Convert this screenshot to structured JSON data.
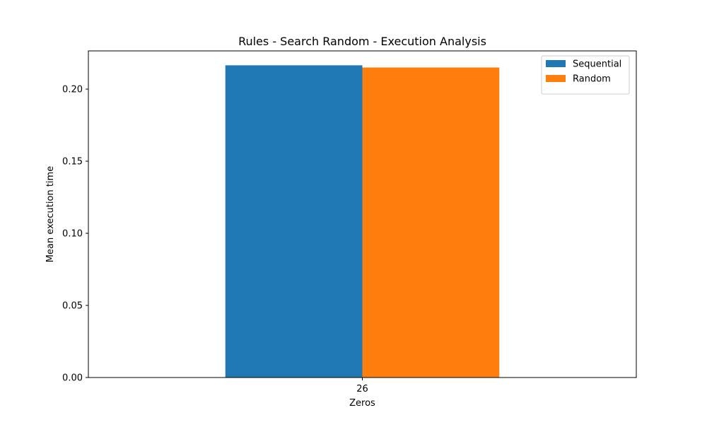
{
  "chart_data": {
    "type": "bar",
    "title": "Rules - Search Random - Execution Analysis",
    "xlabel": "Zeros",
    "ylabel": "Mean execution time",
    "categories": [
      "26"
    ],
    "series": [
      {
        "name": "Sequential",
        "values": [
          0.2165
        ],
        "color": "#1f77b4"
      },
      {
        "name": "Random",
        "values": [
          0.215
        ],
        "color": "#ff7f0e"
      }
    ],
    "ylim": [
      0,
      0.2265
    ],
    "yticks": [
      "0.00",
      "0.05",
      "0.10",
      "0.15",
      "0.20"
    ],
    "ytick_values": [
      0,
      0.05,
      0.1,
      0.15,
      0.2
    ],
    "grid": false,
    "legend_position": "top-right"
  }
}
